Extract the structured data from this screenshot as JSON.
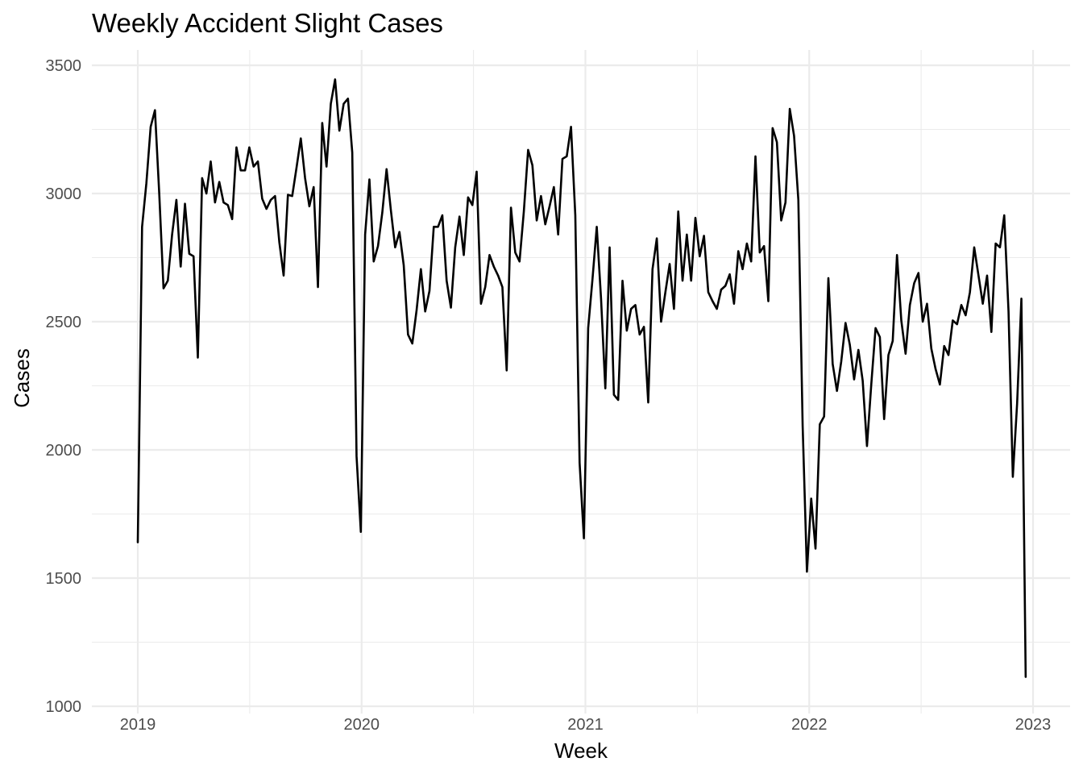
{
  "chart_data": {
    "type": "line",
    "title": "Weekly Accident Slight Cases",
    "xlabel": "Week",
    "ylabel": "Cases",
    "x_start_year": 2019,
    "x_ticks": [
      "2019",
      "2020",
      "2021",
      "2022",
      "2023"
    ],
    "y_ticks": [
      1000,
      1500,
      2000,
      2500,
      3000,
      3500
    ],
    "ylim": [
      1000,
      3500
    ],
    "grid": true,
    "legend": "none",
    "line_color": "#000000",
    "series": [
      {
        "values": [
          1640,
          2870,
          3040,
          3260,
          3325,
          3000,
          2630,
          2660,
          2840,
          2975,
          2715,
          2960,
          2765,
          2755,
          2360,
          3060,
          3000,
          3125,
          2965,
          3045,
          2965,
          2955,
          2900,
          3180,
          3090,
          3090,
          3180,
          3105,
          3125,
          2980,
          2940,
          2975,
          2990,
          2810,
          2680,
          2995,
          2990,
          3100,
          3215,
          3060,
          2950,
          3025,
          2635,
          3275,
          3105,
          3350,
          3445,
          3245,
          3350,
          3370,
          3160,
          1975,
          1680,
          2840,
          3055,
          2735,
          2795,
          2925,
          3095,
          2935,
          2790,
          2850,
          2720,
          2450,
          2415,
          2545,
          2705,
          2540,
          2620,
          2870,
          2870,
          2915,
          2660,
          2555,
          2790,
          2910,
          2760,
          2985,
          2955,
          3085,
          2570,
          2635,
          2760,
          2715,
          2680,
          2635,
          2310,
          2945,
          2770,
          2735,
          2930,
          3170,
          3110,
          2895,
          2990,
          2880,
          2950,
          3025,
          2840,
          3135,
          3145,
          3260,
          2915,
          1950,
          1655,
          2475,
          2665,
          2870,
          2590,
          2240,
          2790,
          2215,
          2195,
          2660,
          2465,
          2550,
          2565,
          2450,
          2480,
          2185,
          2705,
          2825,
          2500,
          2615,
          2725,
          2550,
          2930,
          2660,
          2840,
          2660,
          2905,
          2755,
          2835,
          2615,
          2580,
          2550,
          2625,
          2640,
          2685,
          2570,
          2775,
          2705,
          2805,
          2735,
          3145,
          2770,
          2795,
          2580,
          3255,
          3200,
          2895,
          2965,
          3330,
          3225,
          2975,
          2095,
          1525,
          1810,
          1615,
          2100,
          2130,
          2670,
          2335,
          2230,
          2345,
          2495,
          2410,
          2275,
          2390,
          2270,
          2015,
          2255,
          2475,
          2440,
          2120,
          2370,
          2425,
          2760,
          2505,
          2375,
          2565,
          2650,
          2690,
          2500,
          2570,
          2395,
          2315,
          2255,
          2405,
          2370,
          2505,
          2490,
          2565,
          2525,
          2615,
          2790,
          2680,
          2570,
          2680,
          2460,
          2805,
          2790,
          2915,
          2540,
          1895,
          2180,
          2590,
          1115
        ]
      }
    ]
  }
}
